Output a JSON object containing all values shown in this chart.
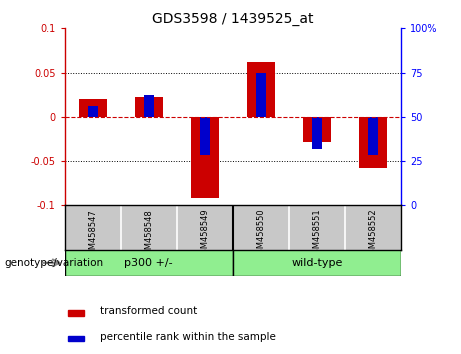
{
  "title": "GDS3598 / 1439525_at",
  "categories": [
    "GSM458547",
    "GSM458548",
    "GSM458549",
    "GSM458550",
    "GSM458551",
    "GSM458552"
  ],
  "red_values": [
    0.02,
    0.022,
    -0.092,
    0.062,
    -0.028,
    -0.058
  ],
  "blue_values": [
    0.012,
    0.025,
    -0.043,
    0.05,
    -0.036,
    -0.043
  ],
  "ylim_left": [
    -0.1,
    0.1
  ],
  "ylim_right": [
    0,
    100
  ],
  "yticks_left": [
    -0.1,
    -0.05,
    0.0,
    0.05,
    0.1
  ],
  "yticks_right": [
    0,
    25,
    50,
    75,
    100
  ],
  "red_color": "#cc0000",
  "blue_color": "#0000cc",
  "red_bar_width": 0.5,
  "blue_bar_width": 0.18,
  "groups": [
    {
      "label": "p300 +/-",
      "start": 0,
      "end": 3
    },
    {
      "label": "wild-type",
      "start": 3,
      "end": 6
    }
  ],
  "group_label": "genotype/variation",
  "legend_red": "transformed count",
  "legend_blue": "percentile rank within the sample",
  "bg_color": "#ffffff",
  "plot_bg": "#ffffff",
  "zero_line_color": "#cc0000",
  "tick_fontsize": 7,
  "title_fontsize": 10,
  "category_bg": "#c8c8c8",
  "group_bg": "#90ee90"
}
